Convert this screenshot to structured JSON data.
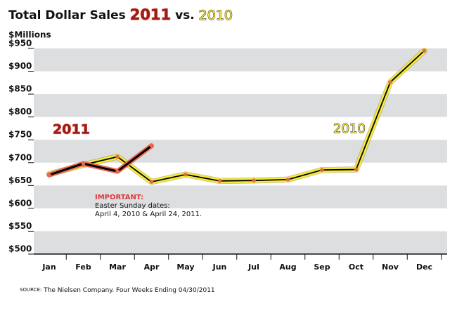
{
  "chart_data": {
    "type": "line",
    "title": [
      "Total Dollar Sales",
      "2011",
      "vs.",
      "2010"
    ],
    "y_label": "$Millions",
    "categories": [
      "Jan",
      "Feb",
      "Mar",
      "Apr",
      "May",
      "Jun",
      "Jul",
      "Aug",
      "Sep",
      "Oct",
      "Nov",
      "Dec"
    ],
    "series": [
      {
        "name": "2010",
        "color": "#f3ea3c",
        "values": [
          675,
          695,
          713,
          658,
          674,
          660,
          661,
          663,
          684,
          685,
          876,
          945
        ]
      },
      {
        "name": "2011",
        "color": "#e8664e",
        "values": [
          673,
          698,
          681,
          737,
          null,
          null,
          null,
          null,
          null,
          null,
          null,
          null
        ]
      }
    ],
    "ylim": [
      500,
      950
    ],
    "yticks": [
      {
        "value": 500,
        "label": "$500"
      },
      {
        "value": 550,
        "label": "$550"
      },
      {
        "value": 600,
        "label": "$600"
      },
      {
        "value": 650,
        "label": "$650"
      },
      {
        "value": 700,
        "label": "$700"
      },
      {
        "value": 750,
        "label": "$750"
      },
      {
        "value": 800,
        "label": "$800"
      },
      {
        "value": 850,
        "label": "$850"
      },
      {
        "value": 900,
        "label": "$900"
      },
      {
        "value": 950,
        "label": "$950"
      }
    ],
    "grid": "bands",
    "annotation": {
      "heading": "IMPORTANT:",
      "lines": [
        "Easter Sunday dates:",
        "April 4, 2010 & April 24, 2011."
      ]
    },
    "source": {
      "label": "SOURCE:",
      "text": "The Nielsen Company. Four Weeks Ending 04/30/2011"
    }
  }
}
